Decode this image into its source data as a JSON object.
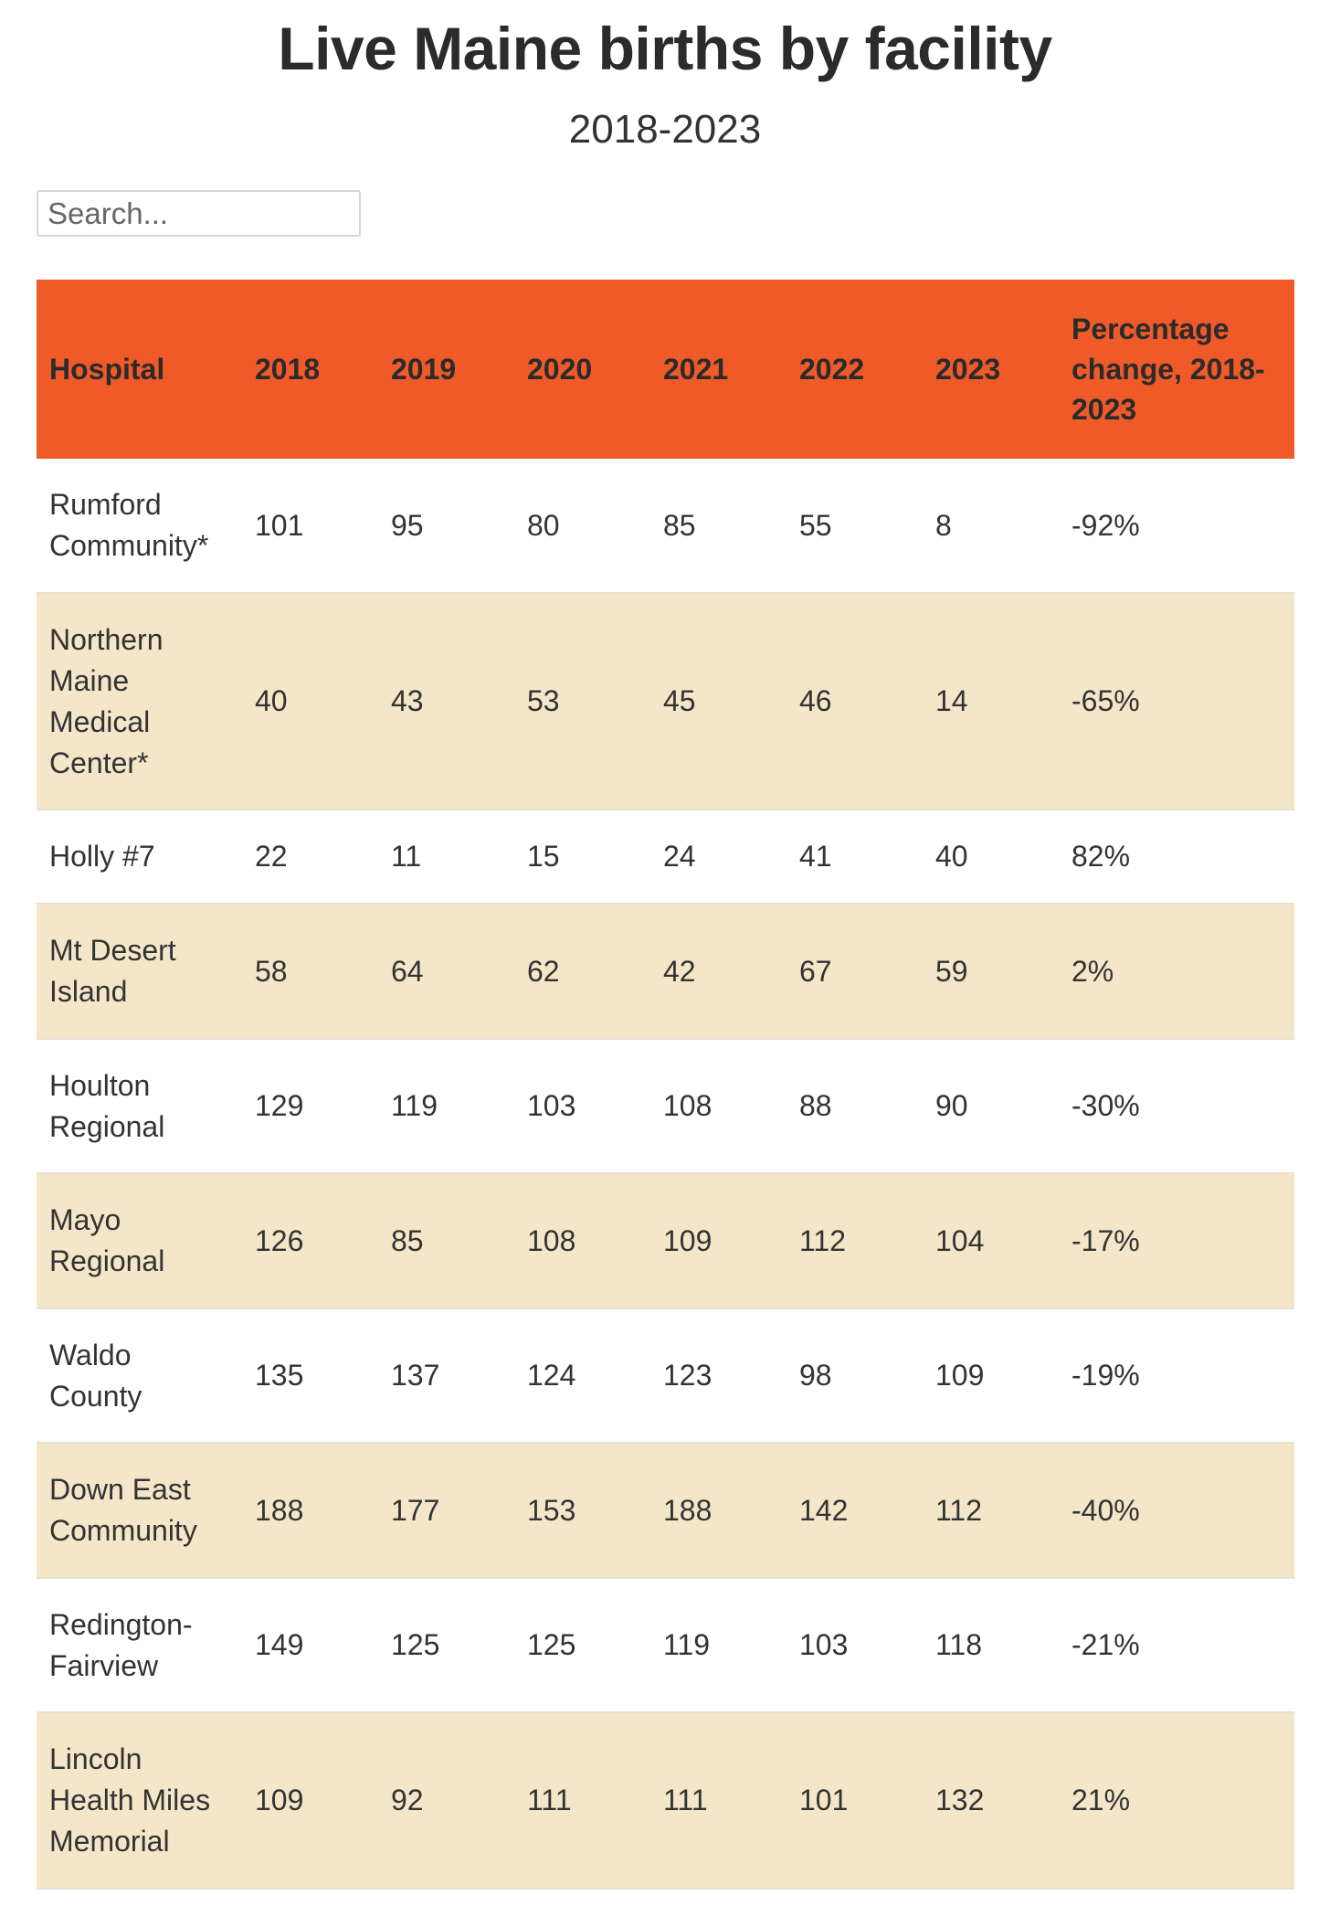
{
  "header": {
    "title": "Live Maine births by facility",
    "subtitle": "2018-2023"
  },
  "search": {
    "placeholder": "Search..."
  },
  "table": {
    "columns": [
      "Hospital",
      "2018",
      "2019",
      "2020",
      "2021",
      "2022",
      "2023",
      "Percentage change, 2018-2023"
    ],
    "rows": [
      {
        "hospital": "Rumford Community*",
        "y2018": "101",
        "y2019": "95",
        "y2020": "80",
        "y2021": "85",
        "y2022": "55",
        "y2023": "8",
        "change": "-92%"
      },
      {
        "hospital": "Northern Maine Medical Center*",
        "y2018": "40",
        "y2019": "43",
        "y2020": "53",
        "y2021": "45",
        "y2022": "46",
        "y2023": "14",
        "change": "-65%"
      },
      {
        "hospital": "Holly #7",
        "y2018": "22",
        "y2019": "11",
        "y2020": "15",
        "y2021": "24",
        "y2022": "41",
        "y2023": "40",
        "change": "82%"
      },
      {
        "hospital": "Mt Desert Island",
        "y2018": "58",
        "y2019": "64",
        "y2020": "62",
        "y2021": "42",
        "y2022": "67",
        "y2023": "59",
        "change": "2%"
      },
      {
        "hospital": "Houlton Regional",
        "y2018": "129",
        "y2019": "119",
        "y2020": "103",
        "y2021": "108",
        "y2022": "88",
        "y2023": "90",
        "change": "-30%"
      },
      {
        "hospital": "Mayo Regional",
        "y2018": "126",
        "y2019": "85",
        "y2020": "108",
        "y2021": "109",
        "y2022": "112",
        "y2023": "104",
        "change": "-17%"
      },
      {
        "hospital": "Waldo County",
        "y2018": "135",
        "y2019": "137",
        "y2020": "124",
        "y2021": "123",
        "y2022": "98",
        "y2023": "109",
        "change": "-19%"
      },
      {
        "hospital": "Down East Community",
        "y2018": "188",
        "y2019": "177",
        "y2020": "153",
        "y2021": "188",
        "y2022": "142",
        "y2023": "112",
        "change": "-40%"
      },
      {
        "hospital": "Redington-Fairview",
        "y2018": "149",
        "y2019": "125",
        "y2020": "125",
        "y2021": "119",
        "y2022": "103",
        "y2023": "118",
        "change": "-21%"
      },
      {
        "hospital": "Lincoln Health Miles Memorial",
        "y2018": "109",
        "y2019": "92",
        "y2020": "111",
        "y2021": "111",
        "y2022": "101",
        "y2023": "132",
        "change": "21%"
      }
    ]
  },
  "colors": {
    "header_bg": "#f05a28",
    "alt_row_bg": "#f4e6c8",
    "text": "#333333"
  }
}
